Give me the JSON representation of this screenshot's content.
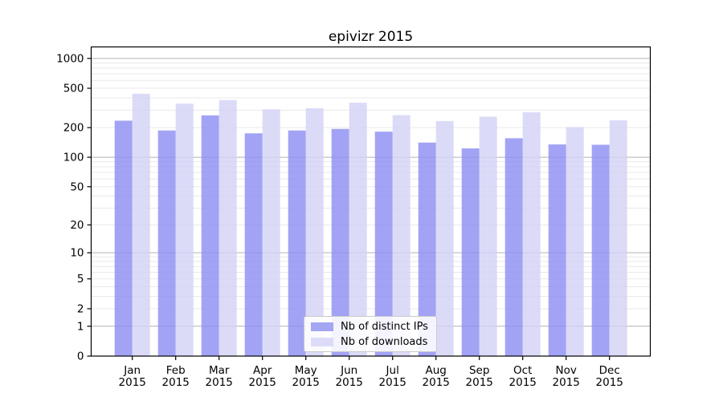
{
  "title": "epivizr 2015",
  "colors": {
    "ips_bar_base": "#8c8cf2",
    "downloads_bar_base": "#d2d2f6",
    "bar_opacity": 0.8,
    "ips_swatch": "#a4a5f3",
    "downloads_swatch": "#dcdcf9",
    "grid_major": "#b2b2b2",
    "grid_minor": "#e9e9e9",
    "axis": "#000000",
    "text": "#000000"
  },
  "legend": {
    "items": [
      {
        "label": "Nb of distinct IPs",
        "color": "#a4a5f3"
      },
      {
        "label": "Nb of downloads",
        "color": "#dcdcf9"
      }
    ]
  },
  "y_axis": {
    "scale": "log1p",
    "ticks": [
      1000,
      500,
      200,
      100,
      50,
      20,
      10,
      5,
      2,
      1,
      0
    ]
  },
  "x_axis": {
    "tick_line2": "2015",
    "months": [
      "Jan",
      "Feb",
      "Mar",
      "Apr",
      "May",
      "Jun",
      "Jul",
      "Aug",
      "Sep",
      "Oct",
      "Nov",
      "Dec"
    ]
  },
  "chart_data": {
    "type": "bar",
    "title": "epivizr 2015",
    "categories": [
      "Jan 2015",
      "Feb 2015",
      "Mar 2015",
      "Apr 2015",
      "May 2015",
      "Jun 2015",
      "Jul 2015",
      "Aug 2015",
      "Sep 2015",
      "Oct 2015",
      "Nov 2015",
      "Dec 2015"
    ],
    "series": [
      {
        "name": "Nb of distinct IPs",
        "color": "#a4a5f3",
        "values": [
          235,
          187,
          266,
          175,
          187,
          194,
          182,
          141,
          123,
          156,
          135,
          134
        ]
      },
      {
        "name": "Nb of downloads",
        "color": "#dcdcf9",
        "values": [
          440,
          349,
          380,
          306,
          314,
          357,
          267,
          233,
          258,
          286,
          202,
          237
        ]
      }
    ],
    "ylabel": "",
    "xlabel": "",
    "yscale": "log1p",
    "y_ticks": [
      1000,
      500,
      200,
      100,
      50,
      20,
      10,
      5,
      2,
      1,
      0
    ],
    "ylim": [
      0,
      1300
    ],
    "grid": true,
    "legend_position": "lower center"
  }
}
